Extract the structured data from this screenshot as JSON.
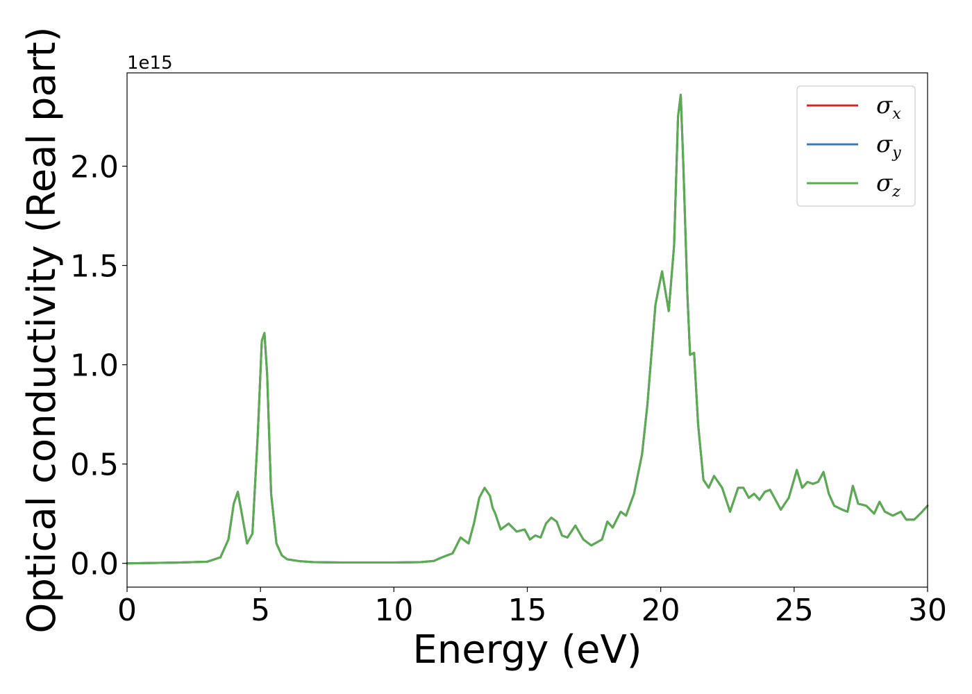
{
  "chart_data": {
    "type": "line",
    "title": "",
    "xlabel": "Energy (eV)",
    "ylabel": "Optical conductivity (Real part)",
    "y_offset_label": "1e15",
    "xlim": [
      0,
      30
    ],
    "ylim": [
      -0.12,
      2.47
    ],
    "x_ticks": [
      0,
      5,
      10,
      15,
      20,
      25,
      30
    ],
    "x_tick_labels": [
      "0",
      "5",
      "10",
      "15",
      "20",
      "25",
      "30"
    ],
    "y_ticks": [
      0.0,
      0.5,
      1.0,
      1.5,
      2.0
    ],
    "y_tick_labels": [
      "0.0",
      "0.5",
      "1.0",
      "1.5",
      "2.0"
    ],
    "grid": false,
    "legend_position": "top-right",
    "x": [
      0.0,
      1.0,
      2.0,
      3.0,
      3.5,
      3.8,
      4.0,
      4.15,
      4.3,
      4.5,
      4.7,
      4.9,
      5.05,
      5.15,
      5.25,
      5.4,
      5.6,
      5.8,
      6.0,
      6.5,
      7.0,
      8.0,
      9.0,
      10.0,
      11.0,
      11.5,
      11.8,
      12.0,
      12.2,
      12.5,
      12.8,
      13.0,
      13.2,
      13.4,
      13.6,
      13.7,
      13.8,
      14.0,
      14.3,
      14.6,
      14.9,
      15.1,
      15.3,
      15.5,
      15.7,
      15.9,
      16.1,
      16.3,
      16.5,
      16.8,
      17.1,
      17.4,
      17.8,
      18.0,
      18.2,
      18.5,
      18.7,
      19.0,
      19.3,
      19.5,
      19.8,
      19.9,
      20.05,
      20.3,
      20.5,
      20.65,
      20.75,
      20.85,
      21.0,
      21.1,
      21.25,
      21.4,
      21.6,
      21.8,
      22.0,
      22.3,
      22.6,
      22.9,
      23.1,
      23.3,
      23.5,
      23.7,
      23.9,
      24.1,
      24.3,
      24.5,
      24.8,
      25.1,
      25.3,
      25.5,
      25.7,
      25.9,
      26.1,
      26.3,
      26.5,
      26.8,
      27.0,
      27.2,
      27.4,
      27.7,
      28.0,
      28.2,
      28.4,
      28.7,
      29.0,
      29.2,
      29.5,
      29.8,
      30.0
    ],
    "series": [
      {
        "name": "σx",
        "name_main": "σ",
        "name_sub": "x",
        "color": "#d62728",
        "values": [
          0.0,
          0.002,
          0.004,
          0.008,
          0.03,
          0.12,
          0.3,
          0.36,
          0.25,
          0.1,
          0.15,
          0.65,
          1.12,
          1.16,
          0.95,
          0.35,
          0.1,
          0.04,
          0.02,
          0.01,
          0.006,
          0.004,
          0.004,
          0.004,
          0.006,
          0.012,
          0.03,
          0.04,
          0.05,
          0.13,
          0.1,
          0.2,
          0.33,
          0.38,
          0.34,
          0.28,
          0.25,
          0.17,
          0.2,
          0.16,
          0.17,
          0.12,
          0.14,
          0.13,
          0.2,
          0.23,
          0.21,
          0.14,
          0.13,
          0.19,
          0.12,
          0.09,
          0.12,
          0.21,
          0.18,
          0.26,
          0.24,
          0.35,
          0.55,
          0.8,
          1.3,
          1.37,
          1.47,
          1.27,
          1.6,
          2.25,
          2.36,
          2.0,
          1.35,
          1.05,
          1.06,
          0.7,
          0.42,
          0.38,
          0.44,
          0.38,
          0.26,
          0.38,
          0.38,
          0.33,
          0.35,
          0.32,
          0.36,
          0.37,
          0.32,
          0.27,
          0.33,
          0.47,
          0.38,
          0.41,
          0.4,
          0.41,
          0.46,
          0.35,
          0.29,
          0.27,
          0.26,
          0.39,
          0.3,
          0.29,
          0.25,
          0.31,
          0.26,
          0.24,
          0.26,
          0.22,
          0.22,
          0.26,
          0.29
        ]
      },
      {
        "name": "σy",
        "name_main": "σ",
        "name_sub": "y",
        "color": "#3d7ab8",
        "values": [
          0.0,
          0.002,
          0.004,
          0.008,
          0.03,
          0.12,
          0.3,
          0.36,
          0.25,
          0.1,
          0.15,
          0.65,
          1.12,
          1.16,
          0.95,
          0.35,
          0.1,
          0.04,
          0.02,
          0.01,
          0.006,
          0.004,
          0.004,
          0.004,
          0.006,
          0.012,
          0.03,
          0.04,
          0.05,
          0.13,
          0.1,
          0.2,
          0.33,
          0.38,
          0.34,
          0.28,
          0.25,
          0.17,
          0.2,
          0.16,
          0.17,
          0.12,
          0.14,
          0.13,
          0.2,
          0.23,
          0.21,
          0.14,
          0.13,
          0.19,
          0.12,
          0.09,
          0.12,
          0.21,
          0.18,
          0.26,
          0.24,
          0.35,
          0.55,
          0.8,
          1.3,
          1.37,
          1.47,
          1.27,
          1.6,
          2.25,
          2.36,
          2.0,
          1.35,
          1.05,
          1.06,
          0.7,
          0.42,
          0.38,
          0.44,
          0.38,
          0.26,
          0.38,
          0.38,
          0.33,
          0.35,
          0.32,
          0.36,
          0.37,
          0.32,
          0.27,
          0.33,
          0.47,
          0.38,
          0.41,
          0.4,
          0.41,
          0.46,
          0.35,
          0.29,
          0.27,
          0.26,
          0.39,
          0.3,
          0.29,
          0.25,
          0.31,
          0.26,
          0.24,
          0.26,
          0.22,
          0.22,
          0.26,
          0.29
        ]
      },
      {
        "name": "σz",
        "name_main": "σ",
        "name_sub": "z",
        "color": "#5aac50",
        "values": [
          0.0,
          0.002,
          0.004,
          0.008,
          0.03,
          0.12,
          0.3,
          0.36,
          0.25,
          0.1,
          0.15,
          0.65,
          1.12,
          1.16,
          0.95,
          0.35,
          0.1,
          0.04,
          0.02,
          0.01,
          0.006,
          0.004,
          0.004,
          0.004,
          0.006,
          0.012,
          0.03,
          0.04,
          0.05,
          0.13,
          0.1,
          0.2,
          0.33,
          0.38,
          0.34,
          0.28,
          0.25,
          0.17,
          0.2,
          0.16,
          0.17,
          0.12,
          0.14,
          0.13,
          0.2,
          0.23,
          0.21,
          0.14,
          0.13,
          0.19,
          0.12,
          0.09,
          0.12,
          0.21,
          0.18,
          0.26,
          0.24,
          0.35,
          0.55,
          0.8,
          1.3,
          1.37,
          1.47,
          1.27,
          1.6,
          2.25,
          2.36,
          2.0,
          1.35,
          1.05,
          1.06,
          0.7,
          0.42,
          0.38,
          0.44,
          0.38,
          0.26,
          0.38,
          0.38,
          0.33,
          0.35,
          0.32,
          0.36,
          0.37,
          0.32,
          0.27,
          0.33,
          0.47,
          0.38,
          0.41,
          0.4,
          0.41,
          0.46,
          0.35,
          0.29,
          0.27,
          0.26,
          0.39,
          0.3,
          0.29,
          0.25,
          0.31,
          0.26,
          0.24,
          0.26,
          0.22,
          0.22,
          0.26,
          0.29
        ]
      }
    ]
  }
}
